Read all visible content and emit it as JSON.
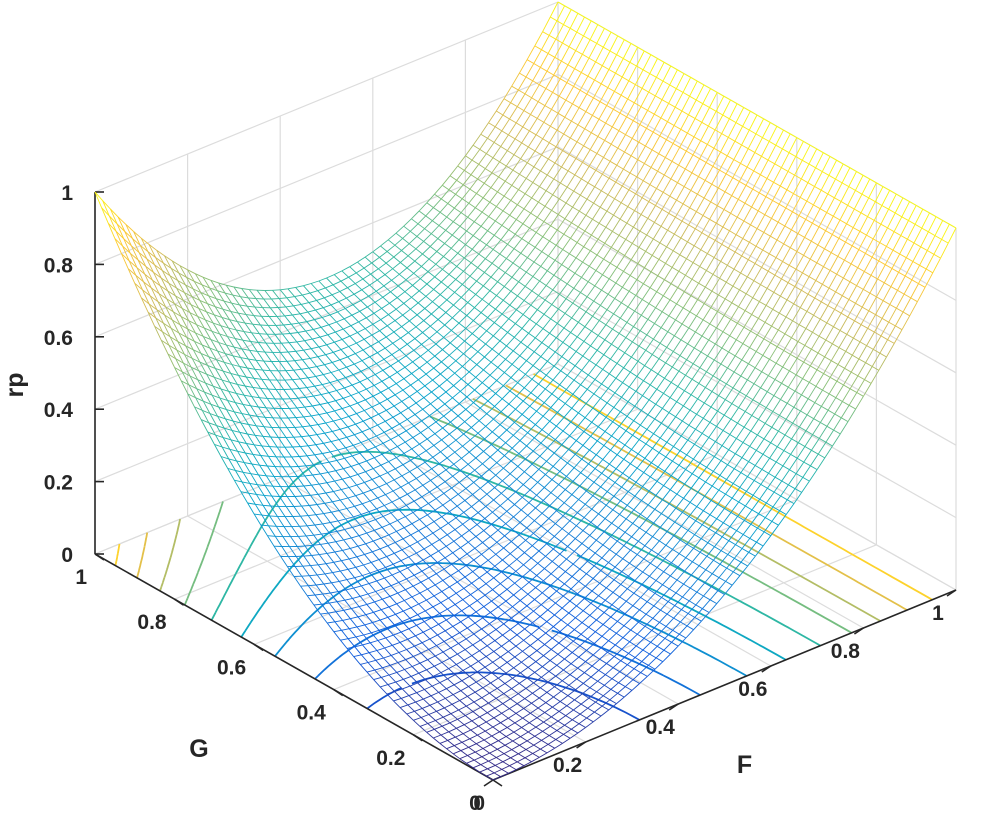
{
  "chart_data": {
    "type": "surface",
    "surface_formula": "rp = F*F + (G - F*G)*(G - F*G)",
    "x_variable": "F",
    "y_variable": "G",
    "z_variable": "rp",
    "xlabel": "F",
    "ylabel": "G",
    "zlabel": "rp",
    "xlim": [
      0,
      1
    ],
    "ylim": [
      0,
      1
    ],
    "zlim": [
      0,
      1
    ],
    "xticks": [
      "0",
      "0.2",
      "0.4",
      "0.6",
      "0.8",
      "1"
    ],
    "yticks": [
      "0",
      "0.2",
      "0.4",
      "0.6",
      "0.8",
      "1"
    ],
    "zticks": [
      "0",
      "0.2",
      "0.4",
      "0.6",
      "0.8",
      "1"
    ],
    "corner_values": [
      {
        "F": 0,
        "G": 0,
        "rp": 0
      },
      {
        "F": 1,
        "G": 0,
        "rp": 1
      },
      {
        "F": 0,
        "G": 1,
        "rp": 1
      },
      {
        "F": 1,
        "G": 1,
        "rp": 1
      }
    ],
    "sample_points": [
      {
        "F": 0.5,
        "G": 0.5,
        "rp": 0.31
      },
      {
        "F": 0.5,
        "G": 1,
        "rp": 0.5
      },
      {
        "F": 0.2,
        "G": 1,
        "rp": 0.68
      },
      {
        "F": 0,
        "G": 0.5,
        "rp": 0.25
      }
    ],
    "contour_levels": [
      0.1,
      0.2,
      0.3,
      0.4,
      0.5,
      0.6,
      0.7,
      0.8,
      0.9
    ],
    "colormap": "parula",
    "colormap_stops": [
      "#352a87",
      "#0f5cdd",
      "#1481d6",
      "#06a4ca",
      "#2eb7a4",
      "#87bf77",
      "#d1bb59",
      "#fec832",
      "#f9fb0e"
    ],
    "grid": true,
    "legend": "none"
  }
}
